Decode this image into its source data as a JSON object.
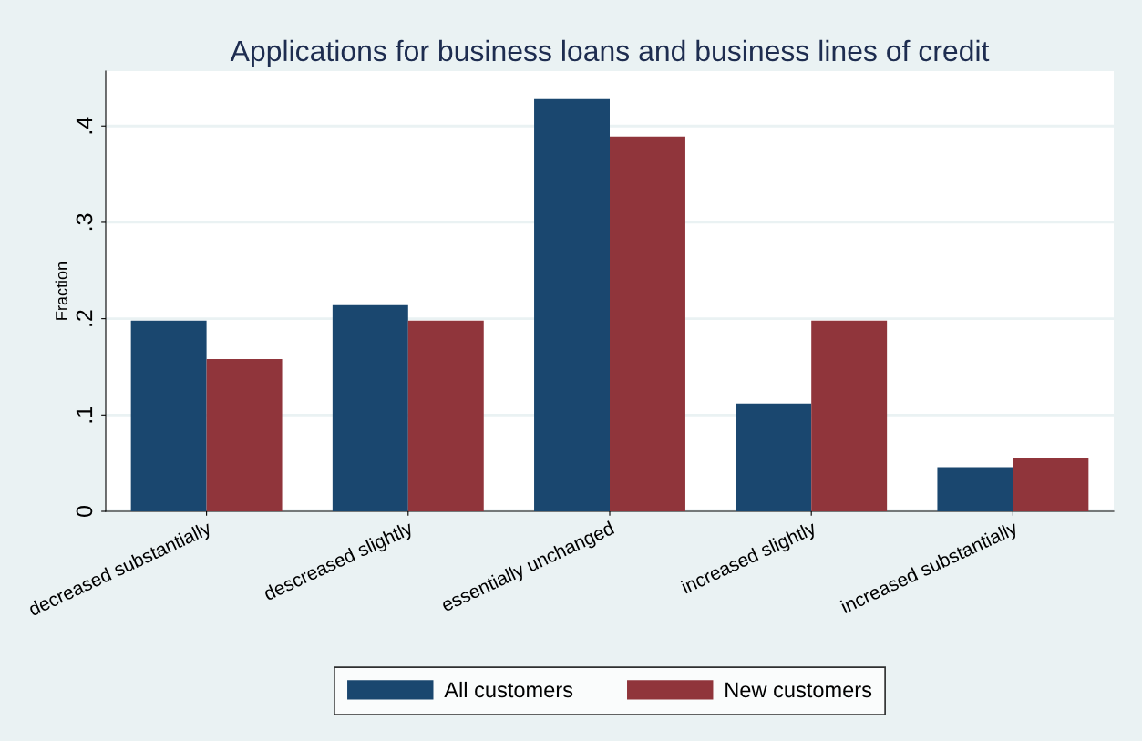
{
  "chart_data": {
    "type": "bar",
    "title": "Applications for business loans and business lines of credit",
    "ylabel": "Fraction",
    "categories": [
      "decreased substantially",
      "descreased slightly",
      "essentially unchanged",
      "increased slightly",
      "increased substantially"
    ],
    "series": [
      {
        "name": "All customers",
        "color": "#1a476f",
        "values": [
          0.198,
          0.214,
          0.428,
          0.112,
          0.046
        ]
      },
      {
        "name": "New customers",
        "color": "#90353b",
        "values": [
          0.158,
          0.198,
          0.389,
          0.198,
          0.055
        ]
      }
    ],
    "ylim": [
      0,
      0.457
    ],
    "yticks": [
      {
        "value": 0,
        "label": "0"
      },
      {
        "value": 0.1,
        "label": ".1"
      },
      {
        "value": 0.2,
        "label": ".2"
      },
      {
        "value": 0.3,
        "label": ".3"
      },
      {
        "value": 0.4,
        "label": ".4"
      }
    ],
    "grid": "y",
    "legend": "bottom"
  }
}
